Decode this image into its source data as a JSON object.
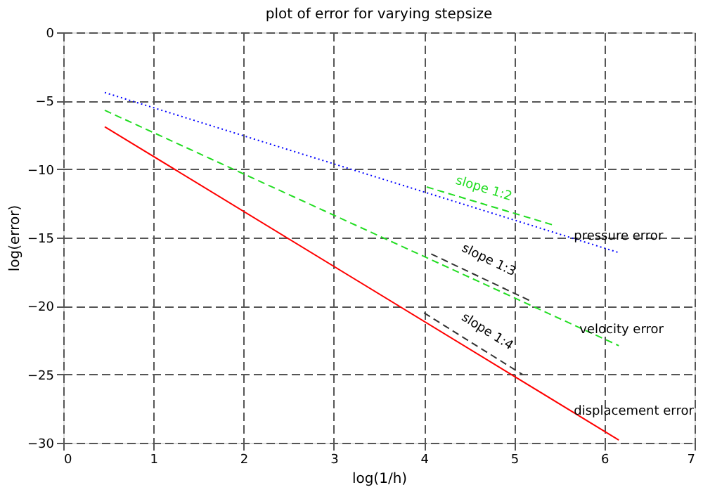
{
  "chart_data": {
    "type": "line",
    "title": "plot of error for varying stepsize",
    "xlabel": "log(1/h)",
    "ylabel": "log(error)",
    "xlim": [
      0,
      7
    ],
    "ylim": [
      -30,
      0
    ],
    "xticks": [
      0,
      1,
      2,
      3,
      4,
      5,
      6,
      7
    ],
    "yticks": [
      -30,
      -25,
      -20,
      -15,
      -10,
      -5,
      0
    ],
    "grid": true,
    "series": [
      {
        "name": "pressure error",
        "x": [
          0.46,
          6.16
        ],
        "values": [
          -4.4,
          -16.1
        ],
        "color": "#0000ff",
        "line_style": "dotted"
      },
      {
        "name": "velocity error",
        "x": [
          0.46,
          6.16
        ],
        "values": [
          -5.7,
          -22.9
        ],
        "color": "#22dd22",
        "line_style": "dashed"
      },
      {
        "name": "displacement error",
        "x": [
          0.46,
          6.16
        ],
        "values": [
          -6.9,
          -29.8
        ],
        "color": "#ff0000",
        "line_style": "solid"
      },
      {
        "name": "slope 1:2",
        "x": [
          4.03,
          5.44
        ],
        "values": [
          -11.3,
          -14.1
        ],
        "color": "#22dd22",
        "line_style": "dashed"
      },
      {
        "name": "slope 1:3",
        "x": [
          4.08,
          5.17
        ],
        "values": [
          -16.2,
          -19.6
        ],
        "color": "#333333",
        "line_style": "dashed"
      },
      {
        "name": "slope 1:4",
        "x": [
          4.0,
          5.09
        ],
        "values": [
          -20.5,
          -25.0
        ],
        "color": "#333333",
        "line_style": "dashed"
      }
    ]
  }
}
